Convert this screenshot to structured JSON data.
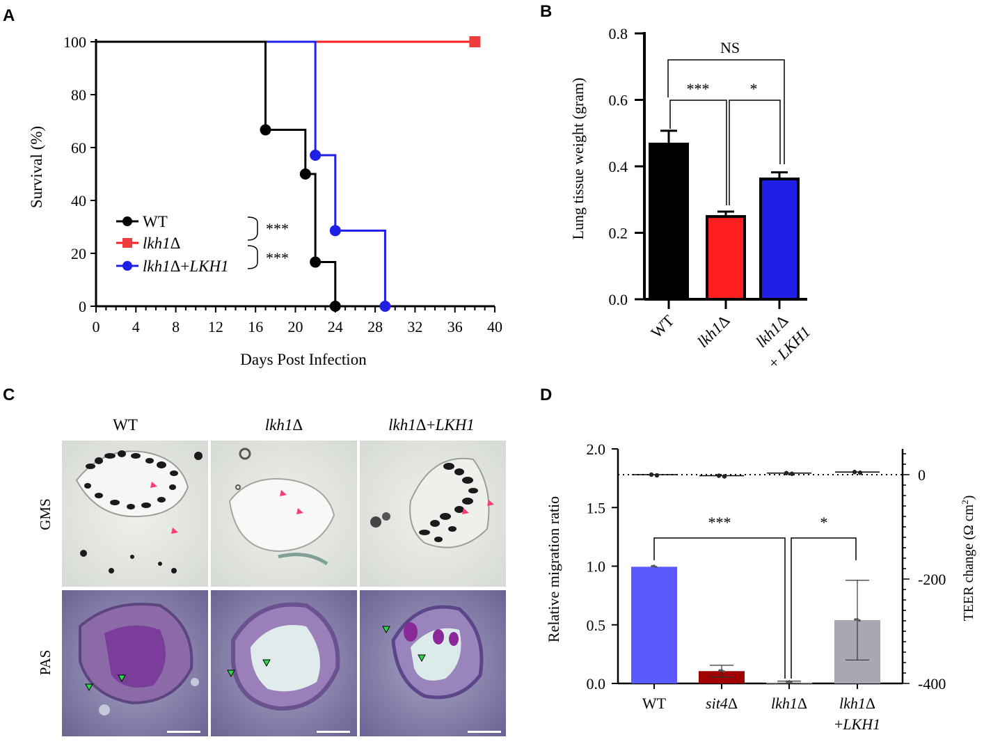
{
  "panel_labels": {
    "a": "A",
    "b": "B",
    "c": "C",
    "d": "D"
  },
  "colors": {
    "wt": "#000000",
    "lkh1": "#ff1f1f",
    "lkh1_red_marker": "#f03c3c",
    "comp": "#1f1fe8",
    "bar_blue": "#5a5aff",
    "bar_darkred": "#a00000",
    "bar_gray": "#a8a8b2"
  },
  "chart_data": [
    {
      "id": "A",
      "type": "line",
      "ylabel": "Survival (%)",
      "xlabel": "Days Post Infection",
      "ylim": [
        0,
        100
      ],
      "xlim": [
        0,
        40
      ],
      "yticks": [
        "0",
        "20",
        "40",
        "60",
        "80",
        "100"
      ],
      "xticks": [
        "0",
        "4",
        "8",
        "12",
        "16",
        "20",
        "24",
        "28",
        "32",
        "36",
        "40"
      ],
      "legend": {
        "wt": "WT",
        "lkh1": "lkh1",
        "comp_a": "lkh1",
        "comp_b": "+",
        "comp_c": "LKH1",
        "delta": "Δ"
      },
      "sig": [
        "***",
        "***"
      ],
      "series": [
        {
          "name": "WT",
          "steps": [
            [
              0,
              100
            ],
            [
              17,
              100
            ],
            [
              17,
              66.7
            ],
            [
              21,
              66.7
            ],
            [
              21,
              50
            ],
            [
              22,
              50
            ],
            [
              22,
              16.7
            ],
            [
              24,
              16.7
            ],
            [
              24,
              0
            ]
          ],
          "markers": [
            [
              17,
              66.7
            ],
            [
              21,
              50
            ],
            [
              22,
              16.7
            ],
            [
              24,
              0
            ]
          ]
        },
        {
          "name": "lkh1Δ",
          "steps": [
            [
              0,
              100
            ],
            [
              38,
              100
            ]
          ],
          "markers": [
            [
              38,
              100
            ]
          ]
        },
        {
          "name": "lkh1Δ+LKH1",
          "steps": [
            [
              0,
              100
            ],
            [
              22,
              100
            ],
            [
              22,
              57.1
            ],
            [
              24,
              57.1
            ],
            [
              24,
              28.6
            ],
            [
              29,
              28.6
            ],
            [
              29,
              0
            ]
          ],
          "markers": [
            [
              22,
              57.1
            ],
            [
              24,
              28.6
            ],
            [
              29,
              0
            ]
          ]
        }
      ]
    },
    {
      "id": "B",
      "type": "bar",
      "ylabel": "Lung tissue weight (gram)",
      "ylim": [
        0,
        0.8
      ],
      "yticks": [
        "0.0",
        "0.2",
        "0.4",
        "0.6",
        "0.8"
      ],
      "categories": [
        "WT",
        "lkh1Δ",
        "lkh1Δ + LKH1"
      ],
      "cat_labels": {
        "wt": "WT",
        "lkh1": "lkh1",
        "comp_a": "lkh1",
        "comp_b": "+ ",
        "comp_c": "LKH1",
        "delta": "Δ"
      },
      "values": [
        0.467,
        0.249,
        0.362
      ],
      "errors": [
        0.04,
        0.015,
        0.02
      ],
      "sig": [
        "NS",
        "***",
        "*"
      ]
    },
    {
      "id": "D",
      "type": "bar",
      "ylabel": "Relative migration ratio",
      "y2label_a": "TEER change (Ω cm",
      "y2label_sup": "2",
      "y2label_b": ")",
      "ylim": [
        0,
        2.0
      ],
      "yticks": [
        "0.0",
        "0.5",
        "1.0",
        "1.5",
        "2.0"
      ],
      "y2ticks": [
        "0",
        "-200",
        "-400"
      ],
      "y2lim": [
        -400,
        50
      ],
      "categories": [
        "WT",
        "sit4Δ",
        "lkh1Δ",
        "lkh1Δ +LKH1"
      ],
      "cat_labels": {
        "wt": "WT",
        "sit4": "sit4",
        "lkh1": "lkh1",
        "comp_a": "lkh1",
        "comp_b": "+",
        "comp_c": "LKH1",
        "delta": "Δ"
      },
      "values": [
        0.995,
        0.105,
        0.01,
        0.54
      ],
      "errors": [
        0.0,
        0.05,
        0.01,
        0.34
      ],
      "teer_values": [
        0,
        -2,
        3,
        5
      ],
      "sig": [
        "***",
        "*"
      ]
    }
  ],
  "histology": {
    "columns": {
      "wt": "WT",
      "lkh1": "lkh1",
      "comp_a": "lkh1",
      "comp_b": "+",
      "comp_c": "LKH1",
      "delta": "Δ"
    },
    "rows": [
      "GMS",
      "PAS"
    ]
  }
}
